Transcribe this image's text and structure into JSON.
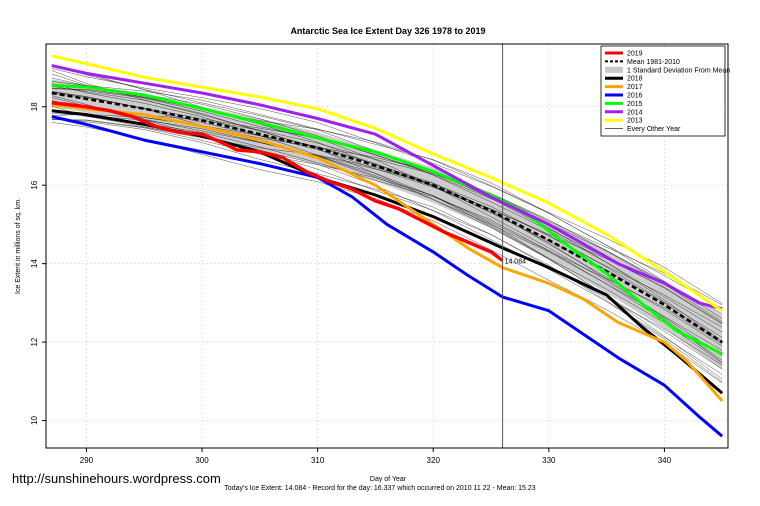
{
  "chart_data": {
    "type": "line",
    "title": "Antarctic Sea Ice Extent Day 326 1978 to 2019",
    "xlabel": "Day of Year",
    "ylabel": "Ice Extent in millions of sq. km.",
    "xlim": [
      286.5,
      345.5
    ],
    "ylim": [
      9.3,
      19.6
    ],
    "x_ticks": [
      290,
      300,
      310,
      320,
      330,
      340
    ],
    "y_ticks": [
      10,
      12,
      14,
      16,
      18
    ],
    "grid": true,
    "legend_position": "top-right",
    "current_day": 326,
    "current_value_label": "14.084",
    "legend": [
      {
        "label": "2019",
        "color": "#ff0000",
        "style": "thick"
      },
      {
        "label": "Mean 1981-2010",
        "color": "#000000",
        "style": "dashed"
      },
      {
        "label": "1 Standard Deviation From Mean",
        "color": "#c8c8c8",
        "style": "band"
      },
      {
        "label": "2018",
        "color": "#000000",
        "style": "thick"
      },
      {
        "label": "2017",
        "color": "#ffa500",
        "style": "thick"
      },
      {
        "label": "2016",
        "color": "#0000ff",
        "style": "thick"
      },
      {
        "label": "2015",
        "color": "#00ff00",
        "style": "thick"
      },
      {
        "label": "2014",
        "color": "#a020f0",
        "style": "thick"
      },
      {
        "label": "2013",
        "color": "#ffff00",
        "style": "thick"
      },
      {
        "label": "Every Other Year",
        "color": "#000000",
        "style": "thin"
      }
    ],
    "mean": {
      "x": [
        287,
        290,
        295,
        300,
        305,
        310,
        315,
        320,
        325,
        330,
        335,
        340,
        345
      ],
      "y": [
        18.35,
        18.2,
        17.95,
        17.65,
        17.3,
        16.95,
        16.5,
        16.0,
        15.35,
        14.6,
        13.8,
        12.95,
        12.0
      ]
    },
    "std_band": {
      "x": [
        287,
        290,
        295,
        300,
        305,
        310,
        315,
        320,
        325,
        330,
        335,
        340,
        345
      ],
      "upper": [
        18.7,
        18.55,
        18.3,
        18.0,
        17.7,
        17.35,
        16.9,
        16.45,
        15.8,
        15.1,
        14.35,
        13.55,
        12.7
      ],
      "lower": [
        18.0,
        17.85,
        17.6,
        17.3,
        16.9,
        16.55,
        16.1,
        15.55,
        14.9,
        14.1,
        13.25,
        12.35,
        11.3
      ]
    },
    "series": [
      {
        "name": "2019",
        "color": "#ff0000",
        "width": 3.5,
        "x": [
          287,
          290,
          292,
          294,
          296,
          298,
          300,
          302,
          303,
          305,
          307,
          309,
          311,
          313,
          315,
          317,
          319,
          321,
          323,
          325,
          326
        ],
        "y": [
          18.1,
          18.0,
          17.9,
          17.75,
          17.5,
          17.35,
          17.3,
          17.05,
          16.9,
          16.85,
          16.7,
          16.35,
          16.1,
          15.9,
          15.6,
          15.4,
          15.1,
          14.8,
          14.55,
          14.3,
          14.08
        ]
      },
      {
        "name": "2018",
        "color": "#000000",
        "width": 3,
        "x": [
          287,
          290,
          295,
          300,
          305,
          310,
          315,
          320,
          323,
          326,
          330,
          335,
          338,
          341,
          345
        ],
        "y": [
          17.9,
          17.8,
          17.55,
          17.25,
          16.85,
          16.2,
          15.75,
          15.2,
          14.8,
          14.4,
          13.9,
          13.2,
          12.4,
          11.7,
          10.7
        ]
      },
      {
        "name": "2017",
        "color": "#ffa500",
        "width": 3,
        "x": [
          287,
          290,
          295,
          300,
          305,
          310,
          315,
          318,
          320,
          323,
          326,
          330,
          333,
          336,
          340,
          342,
          345
        ],
        "y": [
          18.05,
          17.95,
          17.8,
          17.5,
          17.15,
          16.7,
          16.0,
          15.4,
          15.0,
          14.4,
          13.9,
          13.5,
          13.1,
          12.5,
          12.0,
          11.5,
          10.5
        ]
      },
      {
        "name": "2016",
        "color": "#0000ff",
        "width": 3,
        "x": [
          287,
          290,
          295,
          300,
          305,
          310,
          313,
          316,
          320,
          323,
          326,
          330,
          333,
          336,
          340,
          343,
          345
        ],
        "y": [
          17.75,
          17.55,
          17.15,
          16.85,
          16.55,
          16.2,
          15.7,
          15.0,
          14.3,
          13.7,
          13.15,
          12.8,
          12.2,
          11.6,
          10.9,
          10.1,
          9.6
        ]
      },
      {
        "name": "2015",
        "color": "#00ff00",
        "width": 3,
        "x": [
          287,
          290,
          295,
          300,
          305,
          310,
          315,
          320,
          325,
          328,
          331,
          335,
          338,
          341,
          345
        ],
        "y": [
          18.55,
          18.5,
          18.3,
          17.95,
          17.6,
          17.2,
          16.85,
          16.35,
          15.75,
          15.3,
          14.6,
          13.75,
          13.0,
          12.3,
          11.7
        ]
      },
      {
        "name": "2014",
        "color": "#a020f0",
        "width": 3,
        "x": [
          287,
          290,
          295,
          300,
          305,
          310,
          315,
          320,
          325,
          330,
          333,
          336,
          340,
          343,
          345
        ],
        "y": [
          19.05,
          18.85,
          18.6,
          18.35,
          18.05,
          17.7,
          17.3,
          16.5,
          15.7,
          15.0,
          14.5,
          14.0,
          13.5,
          13.0,
          12.85
        ]
      },
      {
        "name": "2013",
        "color": "#ffff00",
        "width": 3,
        "x": [
          287,
          290,
          295,
          300,
          305,
          310,
          315,
          320,
          325,
          330,
          335,
          340,
          345
        ],
        "y": [
          19.3,
          19.1,
          18.75,
          18.5,
          18.25,
          17.95,
          17.45,
          16.8,
          16.2,
          15.55,
          14.75,
          13.8,
          12.8
        ]
      }
    ]
  },
  "caption": "Today's Ice Extent: 14.084 - Record for the day: 16.337 which occurred on 2010 11 22 - Mean: 15.23",
  "watermark": "http://sunshinehours.wordpress.com"
}
